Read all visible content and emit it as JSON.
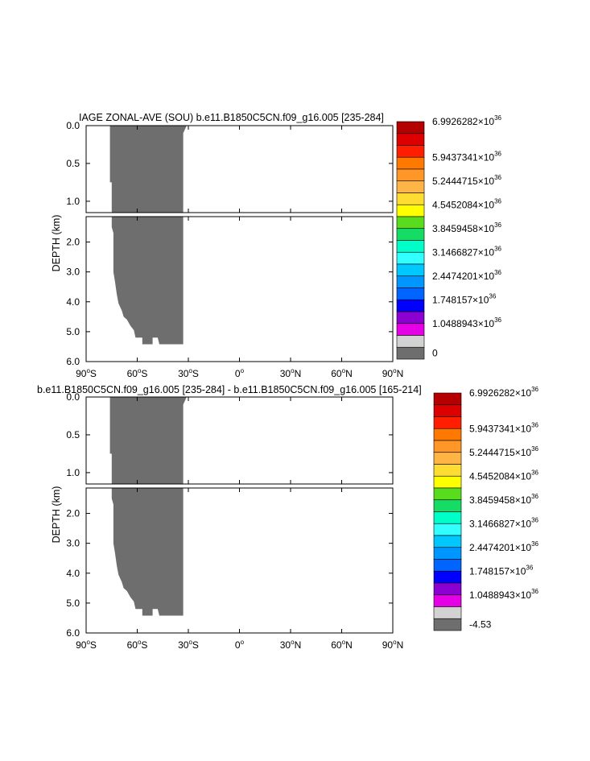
{
  "chart_data": [
    {
      "type": "heatmap",
      "title": "IAGE ZONAL-AVE (SOU) b.e11.B1850C5CN.f09_g16.005 [235-284]",
      "xlabel": "",
      "ylabel": "DEPTH (km)",
      "x_ticks": [
        "90°S",
        "60°S",
        "30°S",
        "0°",
        "30°N",
        "60°N",
        "90°N"
      ],
      "y_ticks_upper": [
        "0.0",
        "0.5",
        "1.0"
      ],
      "y_ticks_lower": [
        "2.0",
        "3.0",
        "4.0",
        "5.0",
        "6.0"
      ],
      "xlim": [
        -90,
        90
      ],
      "ylim": [
        6.0,
        0.0
      ],
      "upper_panel_depth_km": [
        0.0,
        1.15
      ],
      "lower_panel_depth_km": [
        1.15,
        6.0
      ],
      "fill_color": "#6e6e6e",
      "filled_region": {
        "upper": [
          [
            -76,
            0.0
          ],
          [
            -31,
            0.0
          ],
          [
            -33,
            0.1
          ],
          [
            -33,
            1.15
          ],
          [
            -75,
            1.15
          ],
          [
            -75,
            0.75
          ],
          [
            -76,
            0.75
          ]
        ],
        "lower": [
          [
            -75,
            1.15
          ],
          [
            -33,
            1.15
          ],
          [
            -33,
            5.42
          ],
          [
            -47,
            5.42
          ],
          [
            -48,
            5.2
          ],
          [
            -51,
            5.2
          ],
          [
            -51,
            5.42
          ],
          [
            -57,
            5.42
          ],
          [
            -57,
            5.2
          ],
          [
            -61,
            5.2
          ],
          [
            -62,
            4.95
          ],
          [
            -64,
            4.8
          ],
          [
            -66,
            4.6
          ],
          [
            -68,
            4.5
          ],
          [
            -69,
            4.3
          ],
          [
            -71,
            4.05
          ],
          [
            -72,
            3.75
          ],
          [
            -73,
            3.35
          ],
          [
            -74,
            3.0
          ],
          [
            -74,
            2.6
          ],
          [
            -74,
            2.0
          ],
          [
            -74,
            1.7
          ],
          [
            -75,
            1.5
          ]
        ]
      },
      "colorbar": {
        "labels": [
          "6.9926282×10^36",
          "5.9437341×10^36",
          "5.2444715×10^36",
          "4.5452084×10^36",
          "3.8459458×10^36",
          "3.1466827×10^36",
          "2.4474201×10^36",
          "1.748157×10^36",
          "1.0488943×10^36",
          "0"
        ],
        "colors": [
          "#b40000",
          "#dc0000",
          "#ff1e00",
          "#ff7800",
          "#ff9628",
          "#ffb446",
          "#ffdc32",
          "#ffff00",
          "#5adc1e",
          "#14dc64",
          "#00ffc8",
          "#32ffff",
          "#00c8ff",
          "#0096ff",
          "#0064ff",
          "#0000ff",
          "#8c00d2",
          "#e600e6",
          "#d2d2d2",
          "#6e6e6e"
        ]
      }
    },
    {
      "type": "heatmap",
      "title": "b.e11.B1850C5CN.f09_g16.005 [235-284] - b.e11.B1850C5CN.f09_g16.005 [165-214]",
      "xlabel": "",
      "ylabel": "DEPTH (km)",
      "x_ticks": [
        "90°S",
        "60°S",
        "30°S",
        "0°",
        "30°N",
        "60°N",
        "90°N"
      ],
      "y_ticks_upper": [
        "0.0",
        "0.5",
        "1.0"
      ],
      "y_ticks_lower": [
        "2.0",
        "3.0",
        "4.0",
        "5.0",
        "6.0"
      ],
      "xlim": [
        -90,
        90
      ],
      "ylim": [
        6.0,
        0.0
      ],
      "upper_panel_depth_km": [
        0.0,
        1.15
      ],
      "lower_panel_depth_km": [
        1.15,
        6.0
      ],
      "fill_color": "#6e6e6e",
      "filled_region": {
        "upper": [
          [
            -76,
            0.0
          ],
          [
            -31,
            0.0
          ],
          [
            -33,
            0.1
          ],
          [
            -33,
            1.15
          ],
          [
            -75,
            1.15
          ],
          [
            -75,
            0.75
          ],
          [
            -76,
            0.75
          ]
        ],
        "lower": [
          [
            -75,
            1.15
          ],
          [
            -33,
            1.15
          ],
          [
            -33,
            5.42
          ],
          [
            -47,
            5.42
          ],
          [
            -48,
            5.2
          ],
          [
            -51,
            5.2
          ],
          [
            -51,
            5.42
          ],
          [
            -57,
            5.42
          ],
          [
            -57,
            5.2
          ],
          [
            -61,
            5.2
          ],
          [
            -62,
            4.95
          ],
          [
            -64,
            4.8
          ],
          [
            -66,
            4.6
          ],
          [
            -68,
            4.5
          ],
          [
            -69,
            4.3
          ],
          [
            -71,
            4.05
          ],
          [
            -72,
            3.75
          ],
          [
            -73,
            3.35
          ],
          [
            -74,
            3.0
          ],
          [
            -74,
            2.6
          ],
          [
            -74,
            2.0
          ],
          [
            -74,
            1.7
          ],
          [
            -75,
            1.5
          ]
        ]
      },
      "colorbar": {
        "labels": [
          "6.9926282×10^36",
          "5.9437341×10^36",
          "5.2444715×10^36",
          "4.5452084×10^36",
          "3.8459458×10^36",
          "3.1466827×10^36",
          "2.4474201×10^36",
          "1.748157×10^36",
          "1.0488943×10^36",
          "-4.53"
        ],
        "colors": [
          "#b40000",
          "#dc0000",
          "#ff1e00",
          "#ff7800",
          "#ff9628",
          "#ffb446",
          "#ffdc32",
          "#ffff00",
          "#5adc1e",
          "#14dc64",
          "#00ffc8",
          "#32ffff",
          "#00c8ff",
          "#0096ff",
          "#0064ff",
          "#0000ff",
          "#8c00d2",
          "#e600e6",
          "#d2d2d2",
          "#6e6e6e"
        ]
      }
    }
  ]
}
